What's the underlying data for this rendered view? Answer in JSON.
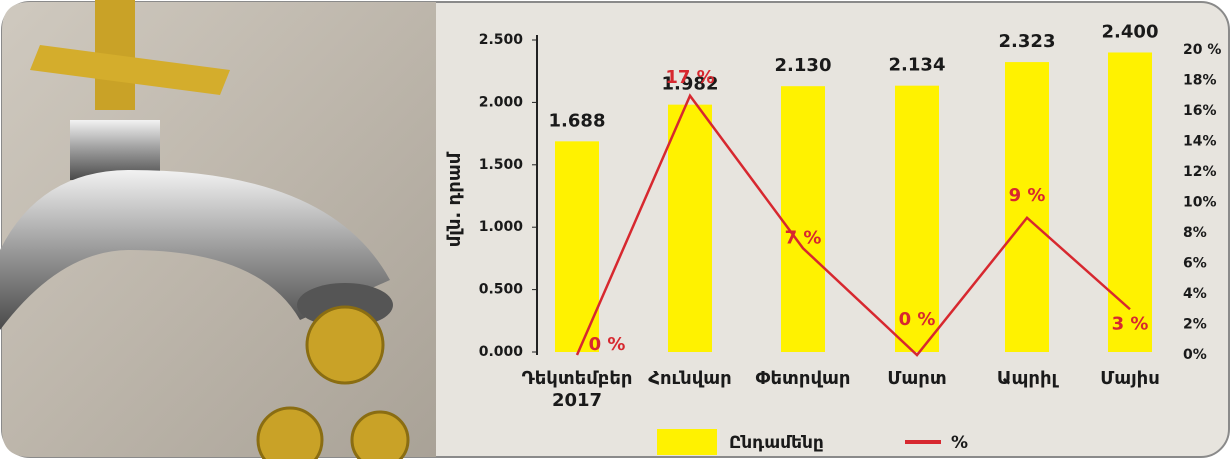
{
  "chart_data": {
    "type": "bar",
    "ylabel": "մլն. դրամ",
    "categories": [
      "Դեկտեմբեր 2017",
      "Հունվար",
      "Փետրվար",
      "Մարտ",
      "Ապրիլ",
      "Մայիս"
    ],
    "series": [
      {
        "name": "Ընդամենը",
        "color": "#fff200",
        "values": [
          1.688,
          1.982,
          2.13,
          2.134,
          2.323,
          2.4
        ],
        "value_labels": [
          "1.688",
          "1.982",
          "2.130",
          "2.134",
          "2.323",
          "2.400"
        ]
      },
      {
        "name": "%",
        "color": "#d7282f",
        "axis": "y2",
        "values": [
          0,
          17,
          7,
          0,
          9,
          3
        ],
        "value_labels": [
          "0 %",
          "17 %",
          "7 %",
          "0 %",
          "9 %",
          "3 %"
        ]
      }
    ],
    "ylim": [
      0,
      2.5
    ],
    "yticks": [
      {
        "value": 0,
        "label": "0.000"
      },
      {
        "value": 0.5,
        "label": "0.500"
      },
      {
        "value": 1,
        "label": "1.000"
      },
      {
        "value": 1.5,
        "label": "1.500"
      },
      {
        "value": 2,
        "label": "2.000"
      },
      {
        "value": 2.5,
        "label": "2.500"
      }
    ],
    "y2lim": [
      0,
      20
    ],
    "y2ticks": [
      {
        "value": 0,
        "label": "0%"
      },
      {
        "value": 2,
        "label": "2%"
      },
      {
        "value": 4,
        "label": "4%"
      },
      {
        "value": 6,
        "label": "6%"
      },
      {
        "value": 8,
        "label": "8%"
      },
      {
        "value": 10,
        "label": "10%"
      },
      {
        "value": 12,
        "label": "12%"
      },
      {
        "value": 14,
        "label": "14%"
      },
      {
        "value": 16,
        "label": "16%"
      },
      {
        "value": 18,
        "label": "18%"
      },
      {
        "value": 20,
        "label": "20 %"
      }
    ]
  }
}
